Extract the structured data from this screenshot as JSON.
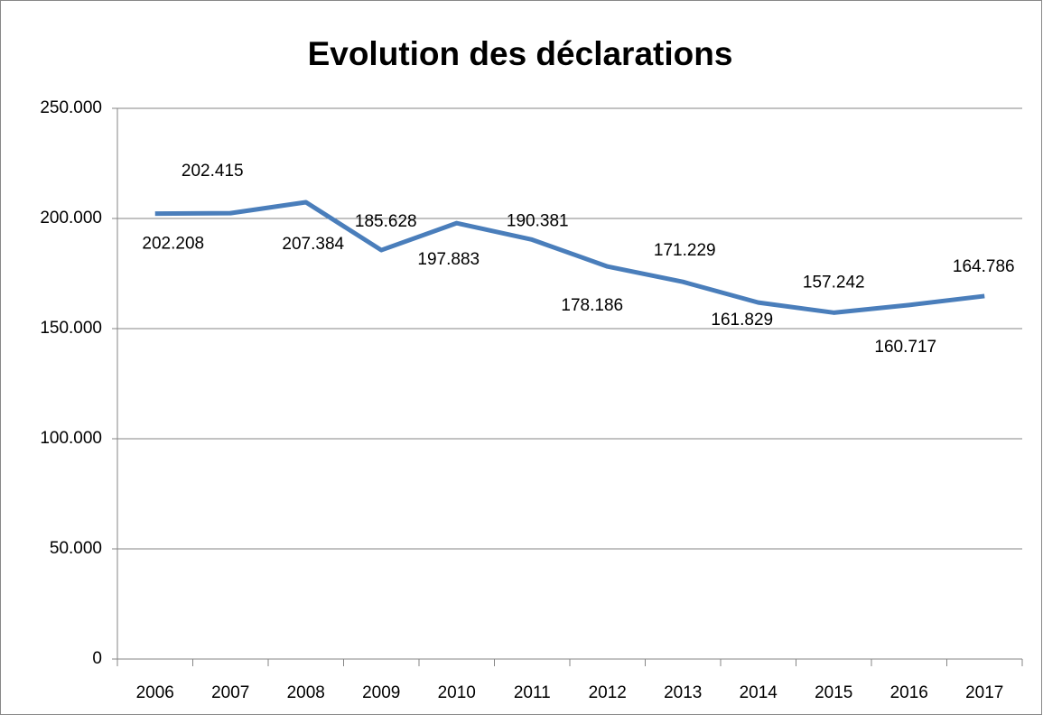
{
  "chart_data": {
    "type": "line",
    "title": "Evolution des déclarations",
    "categories": [
      "2006",
      "2007",
      "2008",
      "2009",
      "2010",
      "2011",
      "2012",
      "2013",
      "2014",
      "2015",
      "2016",
      "2017"
    ],
    "values": [
      202208,
      202415,
      207384,
      185628,
      197883,
      190381,
      178186,
      171229,
      161829,
      157242,
      160717,
      164786
    ],
    "value_labels": [
      "202.208",
      "202.415",
      "207.384",
      "185.628",
      "197.883",
      "190.381",
      "178.186",
      "171.229",
      "161.829",
      "157.242",
      "160.717",
      "164.786"
    ],
    "color": "#4a7ebb",
    "ylim": [
      0,
      250000
    ],
    "yticks": [
      0,
      {
        "value": 50000,
        "label": "50.000"
      },
      {
        "value": 100000,
        "label": "100.000"
      },
      {
        "value": 150000,
        "label": "150.000"
      },
      {
        "value": 200000,
        "label": "200.000"
      },
      {
        "value": 250000,
        "label": "250.000"
      }
    ],
    "grid": true
  }
}
